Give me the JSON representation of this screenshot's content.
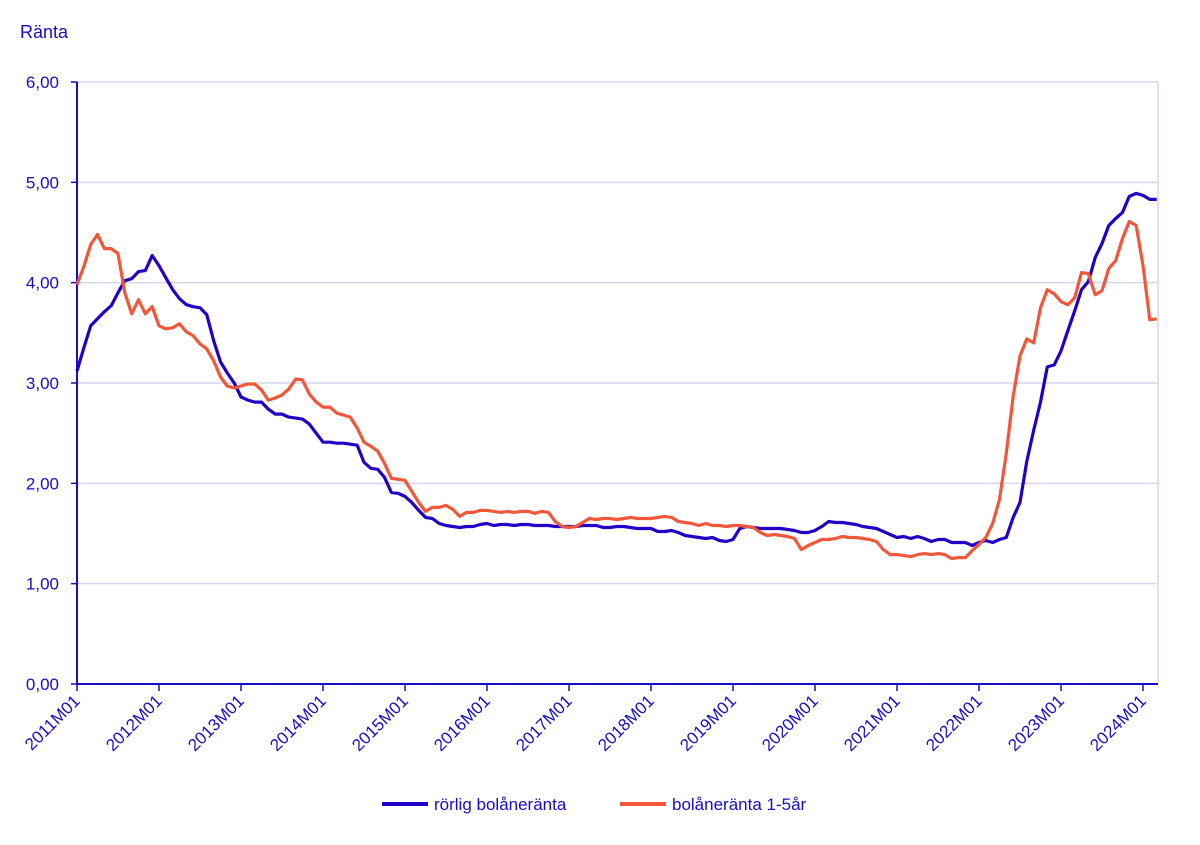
{
  "chart_data": {
    "type": "line",
    "title": "",
    "ylabel": "Ränta",
    "xlabel": "",
    "ylim": [
      0,
      6
    ],
    "yticks": [
      "0,00",
      "1,00",
      "2,00",
      "3,00",
      "4,00",
      "5,00",
      "6,00"
    ],
    "xtick_labels": [
      "2011M01",
      "2012M01",
      "2013M01",
      "2014M01",
      "2015M01",
      "2016M01",
      "2017M01",
      "2018M01",
      "2019M01",
      "2020M01",
      "2021M01",
      "2022M01",
      "2023M01",
      "2024M01"
    ],
    "x_start": "2011M01",
    "x_end": "2024M03",
    "grid": true,
    "legend_position": "bottom",
    "colors": {
      "axis": "#1a0dc8",
      "grid": "#d6d6f2"
    },
    "series": [
      {
        "name": "rörlig bolåneränta",
        "color": "#2200c8",
        "values": [
          3.12,
          3.35,
          3.57,
          3.64,
          3.71,
          3.77,
          3.9,
          4.02,
          4.04,
          4.11,
          4.12,
          4.27,
          4.17,
          4.05,
          3.93,
          3.84,
          3.78,
          3.76,
          3.75,
          3.68,
          3.42,
          3.21,
          3.1,
          3.0,
          2.86,
          2.83,
          2.81,
          2.81,
          2.74,
          2.69,
          2.69,
          2.66,
          2.65,
          2.64,
          2.59,
          2.5,
          2.41,
          2.41,
          2.4,
          2.4,
          2.39,
          2.38,
          2.21,
          2.15,
          2.14,
          2.06,
          1.91,
          1.9,
          1.87,
          1.81,
          1.73,
          1.66,
          1.65,
          1.6,
          1.58,
          1.57,
          1.56,
          1.57,
          1.57,
          1.59,
          1.6,
          1.58,
          1.59,
          1.59,
          1.58,
          1.59,
          1.59,
          1.58,
          1.58,
          1.58,
          1.57,
          1.57,
          1.57,
          1.57,
          1.58,
          1.58,
          1.58,
          1.56,
          1.56,
          1.57,
          1.57,
          1.56,
          1.55,
          1.55,
          1.55,
          1.52,
          1.52,
          1.53,
          1.51,
          1.48,
          1.47,
          1.46,
          1.45,
          1.46,
          1.43,
          1.42,
          1.44,
          1.55,
          1.57,
          1.56,
          1.55,
          1.55,
          1.55,
          1.55,
          1.54,
          1.53,
          1.51,
          1.51,
          1.53,
          1.57,
          1.62,
          1.61,
          1.61,
          1.6,
          1.59,
          1.57,
          1.56,
          1.55,
          1.52,
          1.49,
          1.46,
          1.47,
          1.45,
          1.47,
          1.45,
          1.42,
          1.44,
          1.44,
          1.41,
          1.41,
          1.41,
          1.38,
          1.41,
          1.43,
          1.41,
          1.44,
          1.46,
          1.66,
          1.81,
          2.22,
          2.53,
          2.81,
          3.16,
          3.18,
          3.32,
          3.52,
          3.72,
          3.93,
          4.01,
          4.25,
          4.39,
          4.57,
          4.64,
          4.7,
          4.86,
          4.89,
          4.87,
          4.83,
          4.83
        ]
      },
      {
        "name": "bolåneränta 1-5år",
        "color": "#f2573a",
        "values": [
          3.98,
          4.16,
          4.38,
          4.48,
          4.34,
          4.34,
          4.29,
          3.9,
          3.69,
          3.83,
          3.69,
          3.76,
          3.57,
          3.54,
          3.55,
          3.59,
          3.51,
          3.47,
          3.39,
          3.34,
          3.22,
          3.06,
          2.97,
          2.95,
          2.97,
          2.99,
          2.99,
          2.93,
          2.83,
          2.85,
          2.88,
          2.94,
          3.04,
          3.03,
          2.89,
          2.81,
          2.76,
          2.76,
          2.7,
          2.68,
          2.66,
          2.55,
          2.41,
          2.37,
          2.32,
          2.2,
          2.05,
          2.04,
          2.03,
          1.92,
          1.81,
          1.72,
          1.76,
          1.76,
          1.78,
          1.74,
          1.67,
          1.71,
          1.71,
          1.73,
          1.73,
          1.72,
          1.71,
          1.72,
          1.71,
          1.72,
          1.72,
          1.7,
          1.72,
          1.71,
          1.62,
          1.57,
          1.56,
          1.57,
          1.61,
          1.65,
          1.64,
          1.65,
          1.65,
          1.64,
          1.65,
          1.66,
          1.65,
          1.65,
          1.65,
          1.66,
          1.67,
          1.66,
          1.62,
          1.61,
          1.6,
          1.58,
          1.6,
          1.58,
          1.58,
          1.57,
          1.58,
          1.58,
          1.57,
          1.56,
          1.51,
          1.48,
          1.49,
          1.48,
          1.47,
          1.45,
          1.34,
          1.38,
          1.41,
          1.44,
          1.44,
          1.45,
          1.47,
          1.46,
          1.46,
          1.45,
          1.44,
          1.42,
          1.34,
          1.29,
          1.29,
          1.28,
          1.27,
          1.29,
          1.3,
          1.29,
          1.3,
          1.29,
          1.25,
          1.26,
          1.26,
          1.33,
          1.39,
          1.46,
          1.6,
          1.84,
          2.3,
          2.87,
          3.27,
          3.44,
          3.4,
          3.75,
          3.93,
          3.89,
          3.81,
          3.78,
          3.85,
          4.1,
          4.09,
          3.88,
          3.92,
          4.14,
          4.22,
          4.44,
          4.61,
          4.57,
          4.17,
          3.63,
          3.64
        ]
      }
    ]
  }
}
